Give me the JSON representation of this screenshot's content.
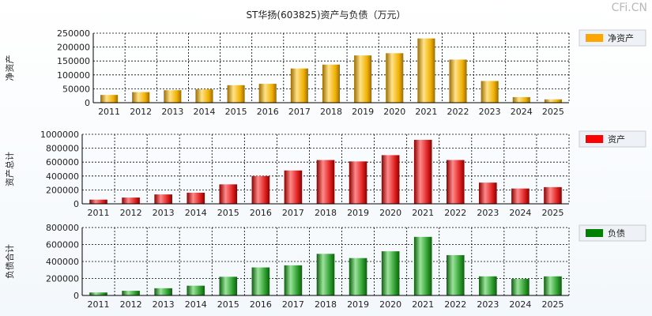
{
  "title": "ST华扬(603825)资产与负债（万元）",
  "watermark": "CFi.CN",
  "chart_data": [
    {
      "type": "bar",
      "ylabel": "净资产",
      "legend": "净资产",
      "categories": [
        "2011",
        "2012",
        "2013",
        "2014",
        "2015",
        "2016",
        "2017",
        "2018",
        "2019",
        "2020",
        "2021",
        "2022",
        "2023",
        "2024",
        "2025"
      ],
      "values": [
        28000,
        38000,
        45000,
        48000,
        63000,
        68000,
        123000,
        137000,
        170000,
        178000,
        231000,
        155000,
        78000,
        20000,
        12000
      ],
      "yticks": [
        0,
        50000,
        100000,
        150000,
        200000,
        250000
      ],
      "ylim": [
        0,
        250000
      ],
      "colors": {
        "light": "#ffe38a",
        "mid": "#f0b000",
        "dark": "#9c6c00",
        "legend": "#ffa500"
      }
    },
    {
      "type": "bar",
      "ylabel": "资产总计",
      "legend": "资产",
      "categories": [
        "2011",
        "2012",
        "2013",
        "2014",
        "2015",
        "2016",
        "2017",
        "2018",
        "2019",
        "2020",
        "2021",
        "2022",
        "2023",
        "2024",
        "2025"
      ],
      "values": [
        60000,
        90000,
        135000,
        160000,
        280000,
        400000,
        480000,
        630000,
        610000,
        700000,
        920000,
        630000,
        305000,
        220000,
        240000
      ],
      "yticks": [
        0,
        200000,
        400000,
        600000,
        800000,
        1000000
      ],
      "ylim": [
        0,
        1000000
      ],
      "colors": {
        "light": "#ff8a8a",
        "mid": "#e02020",
        "dark": "#8a0000",
        "legend": "#ff0000"
      }
    },
    {
      "type": "bar",
      "ylabel": "负债合计",
      "legend": "负债",
      "categories": [
        "2011",
        "2012",
        "2013",
        "2014",
        "2015",
        "2016",
        "2017",
        "2018",
        "2019",
        "2020",
        "2021",
        "2022",
        "2023",
        "2024",
        "2025"
      ],
      "values": [
        35000,
        55000,
        85000,
        115000,
        220000,
        330000,
        355000,
        490000,
        440000,
        520000,
        690000,
        475000,
        225000,
        195000,
        225000
      ],
      "yticks": [
        0,
        200000,
        400000,
        600000,
        800000
      ],
      "ylim": [
        0,
        800000
      ],
      "colors": {
        "light": "#9be39b",
        "mid": "#2e9e2e",
        "dark": "#0e5e0e",
        "legend": "#008000"
      }
    }
  ]
}
